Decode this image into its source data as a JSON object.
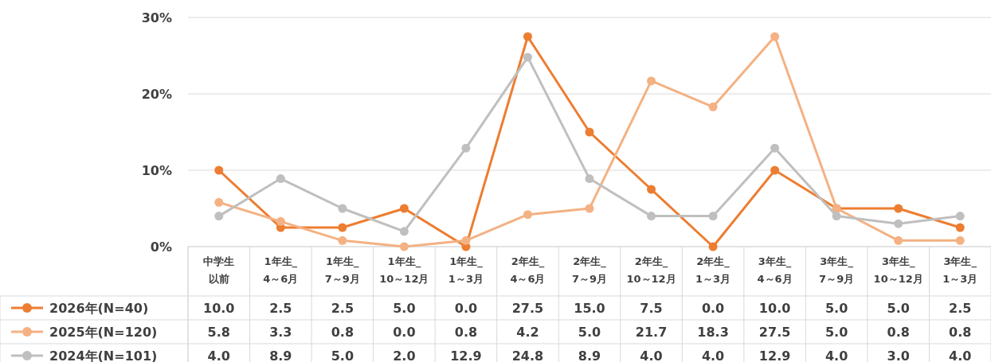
{
  "chart_data": {
    "type": "line",
    "categories": [
      "中学生以前",
      "1年生_\n4～6月",
      "1年生_\n7～9月",
      "1年生_\n10～12月",
      "1年生_\n1～3月",
      "2年生_\n4～6月",
      "2年生_\n7～9月",
      "2年生_\n10～12月",
      "2年生_\n1～3月",
      "3年生_\n4～6月",
      "3年生_\n7～9月",
      "3年生_\n10～12月",
      "3年生_\n1～3月"
    ],
    "series": [
      {
        "name": "2026年(N=40)",
        "color": "#ed7d31",
        "values": [
          10.0,
          2.5,
          2.5,
          5.0,
          0.0,
          27.5,
          15.0,
          7.5,
          0.0,
          10.0,
          5.0,
          5.0,
          2.5
        ],
        "value_labels": [
          "10.0",
          "2.5",
          "2.5",
          "5.0",
          "0.0",
          "27.5",
          "15.0",
          "7.5",
          "0.0",
          "10.0",
          "5.0",
          "5.0",
          "2.5"
        ]
      },
      {
        "name": "2025年(N=120)",
        "color": "#f4b183",
        "values": [
          5.8,
          3.3,
          0.8,
          0.0,
          0.8,
          4.2,
          5.0,
          21.7,
          18.3,
          27.5,
          5.0,
          0.8,
          0.8
        ],
        "value_labels": [
          "5.8",
          "3.3",
          "0.8",
          "0.0",
          "0.8",
          "4.2",
          "5.0",
          "21.7",
          "18.3",
          "27.5",
          "5.0",
          "0.8",
          "0.8"
        ]
      },
      {
        "name": "2024年(N=101)",
        "color": "#bfbfbf",
        "values": [
          4.0,
          8.9,
          5.0,
          2.0,
          12.9,
          24.8,
          8.9,
          4.0,
          4.0,
          12.9,
          4.0,
          3.0,
          4.0
        ],
        "value_labels": [
          "4.0",
          "8.9",
          "5.0",
          "2.0",
          "12.9",
          "24.8",
          "8.9",
          "4.0",
          "4.0",
          "12.9",
          "4.0",
          "3.0",
          "4.0"
        ]
      }
    ],
    "ylim": [
      0,
      30
    ],
    "yticks": [
      {
        "value": 0,
        "label": "0%"
      },
      {
        "value": 10,
        "label": "10%"
      },
      {
        "value": 20,
        "label": "20%"
      },
      {
        "value": 30,
        "label": "30%"
      }
    ],
    "grid": "y",
    "marker": "circle",
    "line_style": "solid",
    "legend": "bottom left"
  }
}
